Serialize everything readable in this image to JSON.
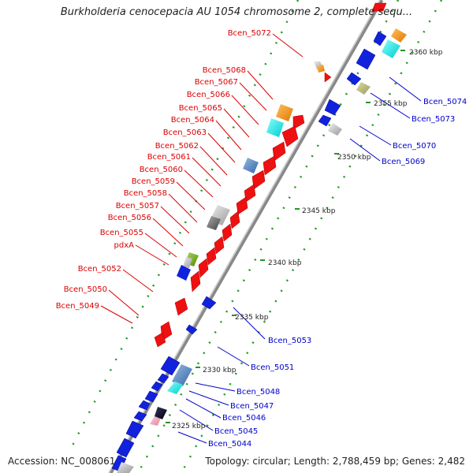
{
  "header": {
    "title": "Burkholderia cenocepacia AU 1054 chromosome 2, complete sequ..."
  },
  "footer": {
    "accession": "Accession: NC_008061",
    "topology": "Topology: circular; Length: 2,788,459 bp; Genes: 2,482"
  },
  "scale_labels": [
    "2360 kbp",
    "2355 kbp",
    "2350 kbp",
    "2345 kbp",
    "2340 kbp",
    "2335 kbp",
    "2330 kbp",
    "2325 kbp"
  ],
  "genes_left": [
    "Bcen_5072",
    "Bcen_5068",
    "Bcen_5067",
    "Bcen_5066",
    "Bcen_5065",
    "Bcen_5064",
    "Bcen_5063",
    "Bcen_5062",
    "Bcen_5061",
    "Bcen_5060",
    "Bcen_5059",
    "Bcen_5058",
    "Bcen_5057",
    "Bcen_5056",
    "Bcen_5055",
    "pdxA",
    "Bcen_5052",
    "Bcen_5050",
    "Bcen_5049"
  ],
  "genes_right": [
    "Bcen_5074",
    "Bcen_5073",
    "Bcen_5070",
    "Bcen_5069",
    "Bcen_5053",
    "Bcen_5051",
    "Bcen_5048",
    "Bcen_5047",
    "Bcen_5046",
    "Bcen_5045",
    "Bcen_5044"
  ],
  "colors": {
    "forward_gene": "#ee1111",
    "reverse_gene": "#1122dd",
    "backbone": "#999999",
    "gc_dots": "#229922"
  }
}
